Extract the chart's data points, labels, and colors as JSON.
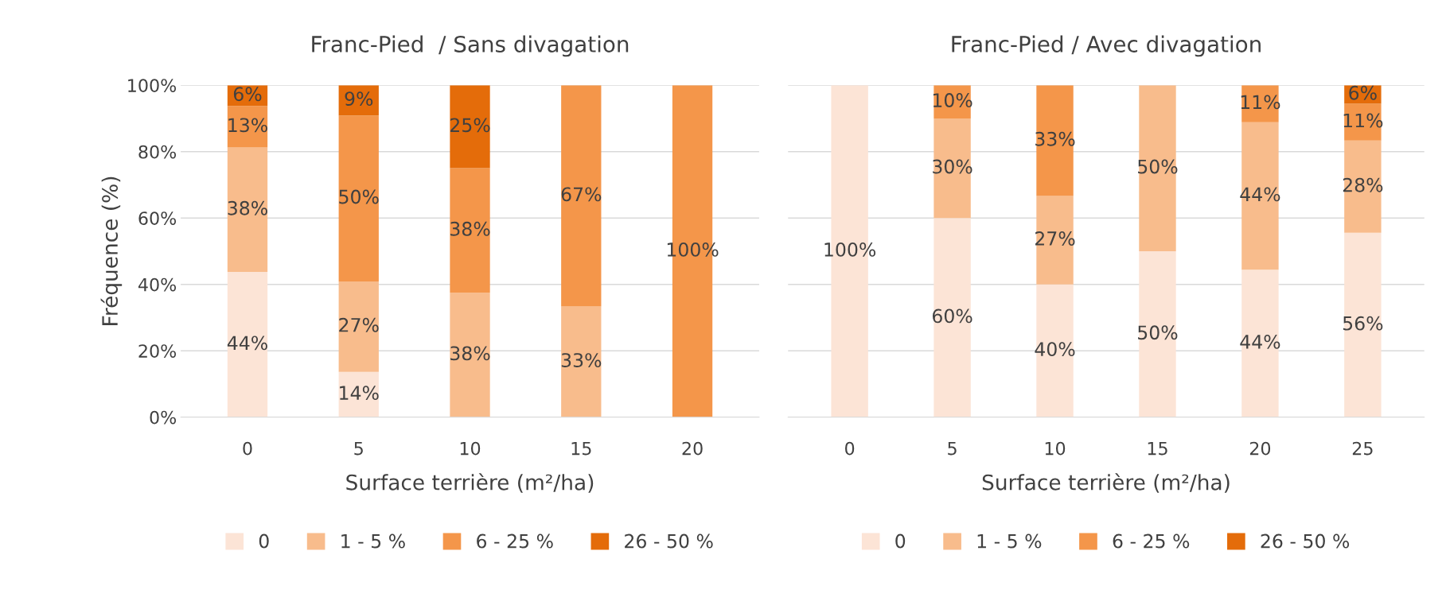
{
  "chart_data": [
    {
      "type": "bar",
      "stacked": true,
      "title": "Franc-Pied  / Sans divagation",
      "xlabel": "Surface terrière (m²/ha)",
      "ylabel": "Fréquence (%)",
      "categories": [
        "0",
        "5",
        "10",
        "15",
        "20"
      ],
      "series": [
        {
          "name": "0",
          "color": "#fce4d6",
          "values": [
            43.75,
            13.64,
            0,
            0,
            0
          ],
          "value_labels": [
            "44%",
            "14%",
            null,
            null,
            null
          ]
        },
        {
          "name": "1 - 5 %",
          "color": "#f8bc8c",
          "values": [
            37.5,
            27.27,
            37.5,
            33.33,
            0
          ],
          "value_labels": [
            "38%",
            "27%",
            "38%",
            "33%",
            null
          ]
        },
        {
          "name": "6 - 25 %",
          "color": "#f4964a",
          "values": [
            12.5,
            50,
            37.5,
            66.67,
            100
          ],
          "value_labels": [
            "13%",
            "50%",
            "38%",
            "67%",
            "100%"
          ]
        },
        {
          "name": "26 - 50 %",
          "color": "#e46c0a",
          "values": [
            6.25,
            9.09,
            25,
            0,
            0
          ],
          "value_labels": [
            "6%",
            "9%",
            "25%",
            null,
            null
          ]
        }
      ],
      "ylim": [
        0,
        100
      ],
      "yticks": [
        {
          "value": 0,
          "label": "0%"
        },
        {
          "value": 20,
          "label": "20%"
        },
        {
          "value": 40,
          "label": "40%"
        },
        {
          "value": 60,
          "label": "60%"
        },
        {
          "value": 80,
          "label": "80%"
        },
        {
          "value": 100,
          "label": "100%"
        }
      ],
      "grid": "y",
      "legend": "bottom"
    },
    {
      "type": "bar",
      "stacked": true,
      "title": "Franc-Pied / Avec divagation",
      "xlabel": "Surface terrière (m²/ha)",
      "categories": [
        "0",
        "5",
        "10",
        "15",
        "20",
        "25"
      ],
      "series": [
        {
          "name": "0",
          "color": "#fce4d6",
          "values": [
            100,
            60,
            40,
            50,
            44.44,
            55.56
          ],
          "value_labels": [
            "100%",
            "60%",
            "40%",
            "50%",
            "44%",
            "56%"
          ]
        },
        {
          "name": "1 - 5 %",
          "color": "#f8bc8c",
          "values": [
            0,
            30,
            26.67,
            50,
            44.44,
            27.78
          ],
          "value_labels": [
            null,
            "30%",
            "27%",
            "50%",
            "44%",
            "28%"
          ]
        },
        {
          "name": "6 - 25 %",
          "color": "#f4964a",
          "values": [
            0,
            10,
            33.33,
            0,
            11.11,
            11.11
          ],
          "value_labels": [
            null,
            "10%",
            "33%",
            null,
            "11%",
            "11%"
          ]
        },
        {
          "name": "26 - 50 %",
          "color": "#e46c0a",
          "values": [
            0,
            0,
            0,
            0,
            0,
            5.56
          ],
          "value_labels": [
            null,
            null,
            null,
            null,
            null,
            "6%"
          ]
        }
      ],
      "ylim": [
        0,
        100
      ],
      "yticks": [
        0,
        20,
        40,
        60,
        80,
        100
      ],
      "tick_labels": "x",
      "grid": "y",
      "legend": "bottom"
    }
  ]
}
